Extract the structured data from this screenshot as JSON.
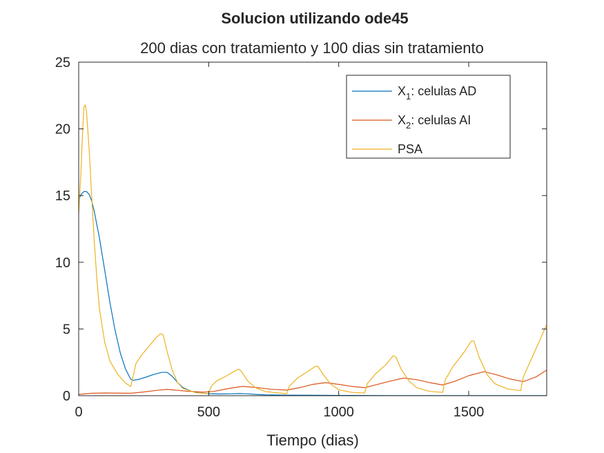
{
  "chart_data": {
    "type": "line",
    "title": "Solucion utilizando ode45",
    "subtitle": "200 dias con tratamiento y 100 dias sin tratamiento",
    "xlabel": "Tiempo (dias)",
    "ylabel": "",
    "xlim": [
      0,
      1800
    ],
    "ylim": [
      0,
      25
    ],
    "xticks": [
      0,
      500,
      1000,
      1500
    ],
    "yticks": [
      0,
      5,
      10,
      15,
      20,
      25
    ],
    "grid": false,
    "legend_position": "top-right",
    "series": [
      {
        "legend_main": "X",
        "legend_sub": "1",
        "legend_rest": ": celulas AD",
        "color": "#0072BD",
        "points": [
          [
            0,
            14.7
          ],
          [
            10,
            15.1
          ],
          [
            20,
            15.3
          ],
          [
            30,
            15.3
          ],
          [
            40,
            15.1
          ],
          [
            50,
            14.6
          ],
          [
            60,
            13.8
          ],
          [
            80,
            11.8
          ],
          [
            100,
            9.4
          ],
          [
            120,
            7.0
          ],
          [
            140,
            4.9
          ],
          [
            160,
            3.2
          ],
          [
            180,
            2.0
          ],
          [
            200,
            1.25
          ],
          [
            210,
            1.15
          ],
          [
            230,
            1.22
          ],
          [
            260,
            1.4
          ],
          [
            290,
            1.6
          ],
          [
            320,
            1.75
          ],
          [
            340,
            1.75
          ],
          [
            360,
            1.45
          ],
          [
            380,
            1.0
          ],
          [
            400,
            0.62
          ],
          [
            430,
            0.35
          ],
          [
            460,
            0.22
          ],
          [
            500,
            0.15
          ],
          [
            540,
            0.13
          ],
          [
            580,
            0.14
          ],
          [
            620,
            0.16
          ],
          [
            650,
            0.14
          ],
          [
            680,
            0.1
          ],
          [
            720,
            0.06
          ],
          [
            800,
            0.04
          ],
          [
            900,
            0.03
          ],
          [
            1000,
            0.02
          ],
          [
            1200,
            0.01
          ],
          [
            1800,
            0.01
          ]
        ]
      },
      {
        "legend_main": "X",
        "legend_sub": "2",
        "legend_rest": ": celulas AI",
        "color": "#D95319",
        "points": [
          [
            0,
            0.1
          ],
          [
            50,
            0.18
          ],
          [
            100,
            0.2
          ],
          [
            200,
            0.18
          ],
          [
            250,
            0.28
          ],
          [
            300,
            0.4
          ],
          [
            340,
            0.47
          ],
          [
            370,
            0.42
          ],
          [
            420,
            0.33
          ],
          [
            480,
            0.27
          ],
          [
            520,
            0.32
          ],
          [
            570,
            0.52
          ],
          [
            630,
            0.7
          ],
          [
            680,
            0.62
          ],
          [
            740,
            0.48
          ],
          [
            800,
            0.42
          ],
          [
            850,
            0.6
          ],
          [
            900,
            0.85
          ],
          [
            950,
            0.98
          ],
          [
            1000,
            0.85
          ],
          [
            1050,
            0.7
          ],
          [
            1100,
            0.6
          ],
          [
            1150,
            0.85
          ],
          [
            1200,
            1.1
          ],
          [
            1250,
            1.32
          ],
          [
            1300,
            1.2
          ],
          [
            1350,
            0.98
          ],
          [
            1400,
            0.8
          ],
          [
            1450,
            1.1
          ],
          [
            1500,
            1.5
          ],
          [
            1560,
            1.8
          ],
          [
            1610,
            1.55
          ],
          [
            1660,
            1.25
          ],
          [
            1710,
            1.05
          ],
          [
            1760,
            1.42
          ],
          [
            1800,
            1.92
          ]
        ]
      },
      {
        "legend_main": "PSA",
        "legend_sub": "",
        "legend_rest": "",
        "color": "#EDB120",
        "points": [
          [
            0,
            13.6
          ],
          [
            8,
            16.5
          ],
          [
            15,
            19.8
          ],
          [
            20,
            21.6
          ],
          [
            25,
            21.8
          ],
          [
            30,
            21.3
          ],
          [
            40,
            18.5
          ],
          [
            50,
            15.0
          ],
          [
            60,
            11.5
          ],
          [
            70,
            8.7
          ],
          [
            80,
            6.5
          ],
          [
            100,
            4.0
          ],
          [
            120,
            2.6
          ],
          [
            150,
            1.6
          ],
          [
            180,
            0.95
          ],
          [
            200,
            0.68
          ],
          [
            210,
            1.5
          ],
          [
            220,
            2.4
          ],
          [
            240,
            3.0
          ],
          [
            270,
            3.7
          ],
          [
            300,
            4.4
          ],
          [
            315,
            4.65
          ],
          [
            325,
            4.55
          ],
          [
            340,
            3.3
          ],
          [
            360,
            1.9
          ],
          [
            380,
            1.0
          ],
          [
            400,
            0.55
          ],
          [
            450,
            0.22
          ],
          [
            500,
            0.15
          ],
          [
            510,
            0.7
          ],
          [
            530,
            1.1
          ],
          [
            570,
            1.5
          ],
          [
            600,
            1.85
          ],
          [
            615,
            1.98
          ],
          [
            625,
            1.85
          ],
          [
            650,
            1.1
          ],
          [
            680,
            0.6
          ],
          [
            720,
            0.3
          ],
          [
            800,
            0.15
          ],
          [
            810,
            0.7
          ],
          [
            840,
            1.3
          ],
          [
            880,
            1.8
          ],
          [
            910,
            2.2
          ],
          [
            920,
            2.2
          ],
          [
            940,
            1.6
          ],
          [
            970,
            0.85
          ],
          [
            1000,
            0.45
          ],
          [
            1050,
            0.25
          ],
          [
            1100,
            0.2
          ],
          [
            1110,
            0.9
          ],
          [
            1140,
            1.6
          ],
          [
            1180,
            2.3
          ],
          [
            1210,
            3.0
          ],
          [
            1220,
            2.9
          ],
          [
            1240,
            2.0
          ],
          [
            1270,
            1.1
          ],
          [
            1300,
            0.6
          ],
          [
            1350,
            0.32
          ],
          [
            1400,
            0.25
          ],
          [
            1410,
            1.2
          ],
          [
            1440,
            2.2
          ],
          [
            1480,
            3.2
          ],
          [
            1510,
            4.1
          ],
          [
            1520,
            4.1
          ],
          [
            1540,
            2.9
          ],
          [
            1570,
            1.6
          ],
          [
            1600,
            0.9
          ],
          [
            1650,
            0.5
          ],
          [
            1700,
            0.38
          ],
          [
            1710,
            1.4
          ],
          [
            1740,
            2.7
          ],
          [
            1770,
            4.0
          ],
          [
            1790,
            4.9
          ],
          [
            1800,
            5.3
          ]
        ]
      }
    ]
  }
}
